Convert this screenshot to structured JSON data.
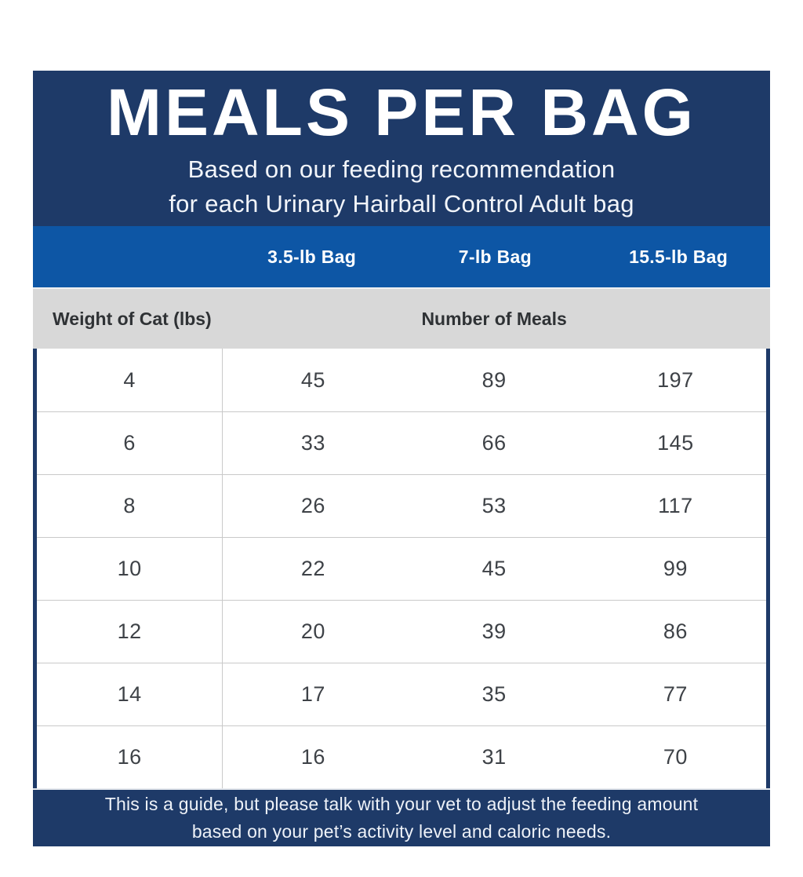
{
  "theme": {
    "navy": "#1e3a68",
    "blue": "#0d56a5",
    "gray": "#d8d8d8",
    "line": "#c9c9c9"
  },
  "header": {
    "title": "MEALS PER BAG",
    "subtitle_line1": "Based on our feeding recommendation",
    "subtitle_line2": "for each Urinary Hairball Control Adult bag"
  },
  "columns": [
    "3.5-lb Bag",
    "7-lb Bag",
    "15.5-lb Bag"
  ],
  "subheader": {
    "left": "Weight of Cat (lbs)",
    "right": "Number of Meals"
  },
  "rows": [
    {
      "weight": "4",
      "meals": [
        "45",
        "89",
        "197"
      ]
    },
    {
      "weight": "6",
      "meals": [
        "33",
        "66",
        "145"
      ]
    },
    {
      "weight": "8",
      "meals": [
        "26",
        "53",
        "117"
      ]
    },
    {
      "weight": "10",
      "meals": [
        "22",
        "45",
        "99"
      ]
    },
    {
      "weight": "12",
      "meals": [
        "20",
        "39",
        "86"
      ]
    },
    {
      "weight": "14",
      "meals": [
        "17",
        "35",
        "77"
      ]
    },
    {
      "weight": "16",
      "meals": [
        "16",
        "31",
        "70"
      ]
    }
  ],
  "footer": {
    "line1": "This is a guide, but please talk with your vet to adjust the feeding amount",
    "line2": "based on your pet’s activity level and caloric needs."
  },
  "chart_data": {
    "type": "table",
    "title": "MEALS PER BAG",
    "subtitle": "Based on our feeding recommendation for each Urinary Hairball Control Adult bag",
    "xlabel": "Weight of Cat (lbs)",
    "ylabel": "Number of Meals",
    "categories": [
      4,
      6,
      8,
      10,
      12,
      14,
      16
    ],
    "series": [
      {
        "name": "3.5-lb Bag",
        "values": [
          45,
          33,
          26,
          22,
          20,
          17,
          16
        ]
      },
      {
        "name": "7-lb Bag",
        "values": [
          89,
          66,
          53,
          45,
          39,
          35,
          31
        ]
      },
      {
        "name": "15.5-lb Bag",
        "values": [
          197,
          145,
          117,
          99,
          86,
          77,
          70
        ]
      }
    ],
    "footnote": "This is a guide, but please talk with your vet to adjust the feeding amount based on your pet’s activity level and caloric needs."
  }
}
